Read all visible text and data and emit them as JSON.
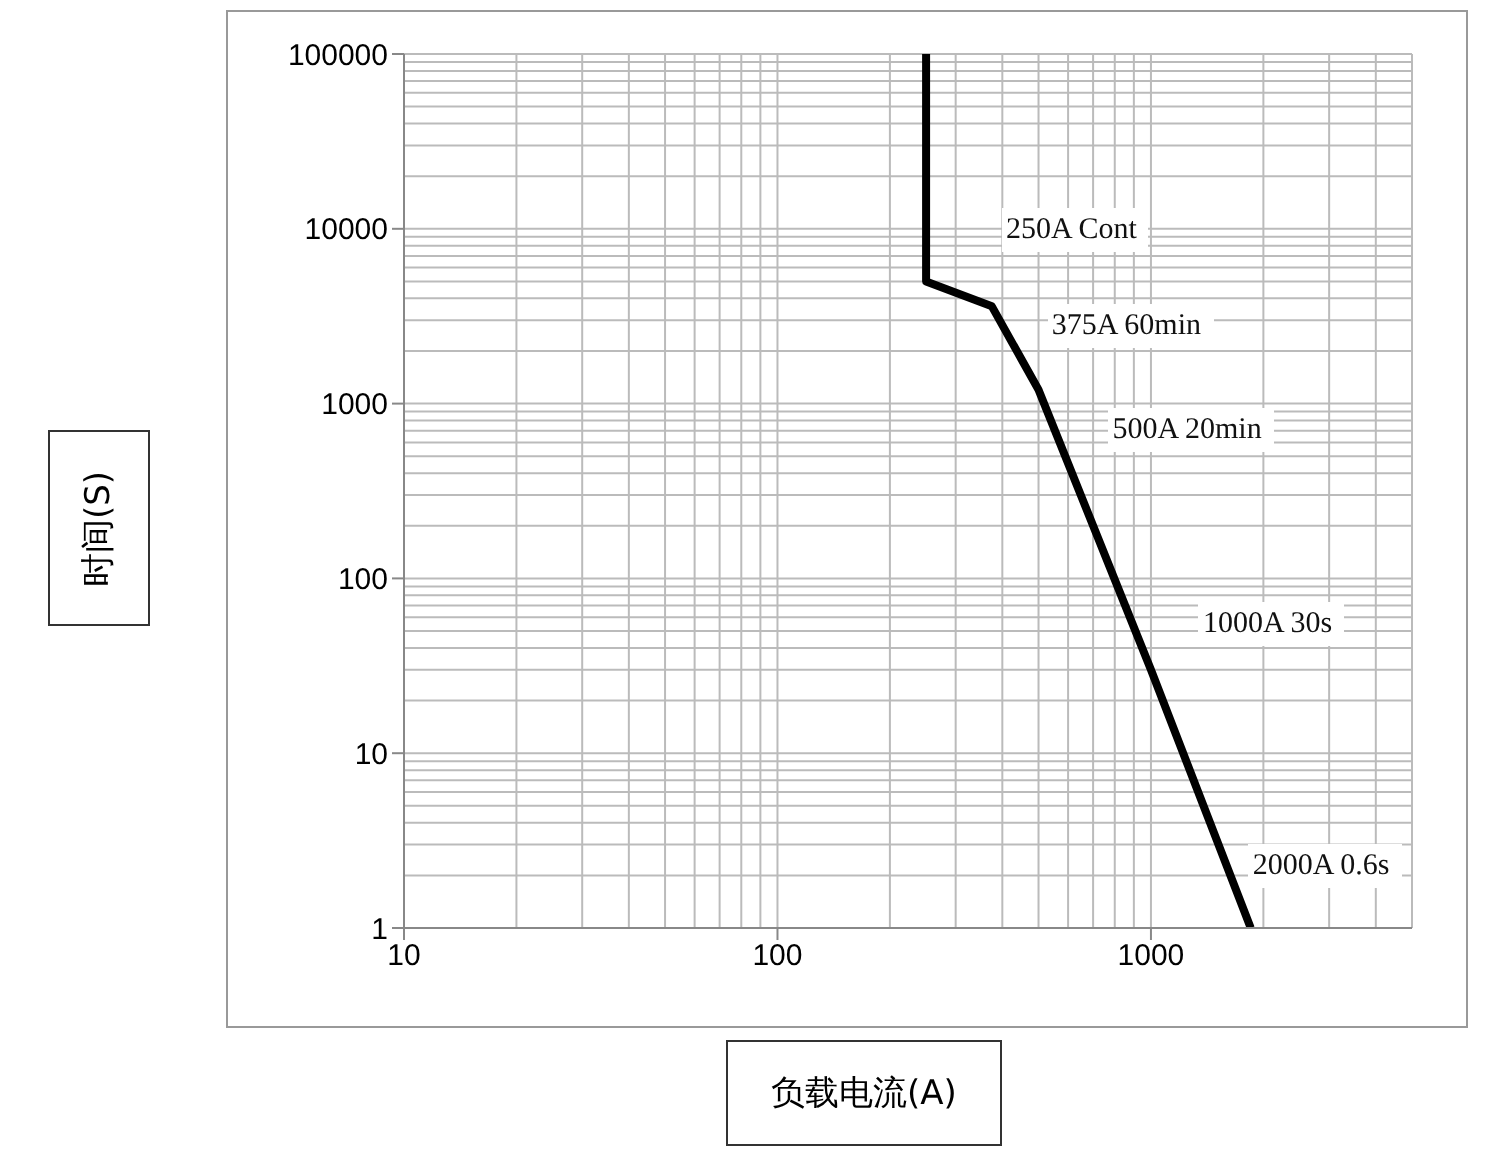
{
  "chart_data": {
    "type": "line",
    "xlabel": "负载电流(A)",
    "ylabel": "时间(S)",
    "log": "xy",
    "grid": true,
    "marker": "none",
    "line_style": "solid",
    "xlim": [
      10,
      5000
    ],
    "xticks": [
      10,
      100,
      1000
    ],
    "ylim": [
      1,
      100000
    ],
    "yticks": [
      1,
      10,
      100,
      1000,
      10000,
      100000
    ],
    "series": [
      {
        "color": "#000000",
        "x": [
          250,
          250,
          375,
          500,
          1000,
          1850
        ],
        "values": [
          100000,
          5000,
          3600,
          1200,
          30,
          1
        ]
      }
    ],
    "annotations": [
      {
        "text": "250A Cont",
        "x": 250,
        "y": 5000
      },
      {
        "text": "375A 60min",
        "x": 375,
        "y": 3600
      },
      {
        "text": "500A 20min",
        "x": 500,
        "y": 1200
      },
      {
        "text": "1000A 30s",
        "x": 1000,
        "y": 30
      },
      {
        "text": "2000A 0.6s",
        "x": 1850,
        "y": 1
      }
    ]
  }
}
